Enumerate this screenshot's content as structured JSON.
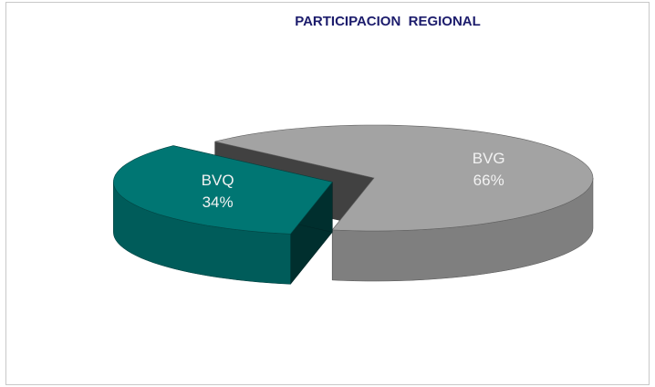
{
  "chart_data": {
    "type": "pie",
    "title": "PARTICIPACION  REGIONAL",
    "categories": [
      "BVQ",
      "BVG"
    ],
    "values": [
      34,
      66
    ],
    "value_labels": [
      "34%",
      "66%"
    ],
    "colors": [
      "#007673",
      "#a3a3a3"
    ]
  }
}
